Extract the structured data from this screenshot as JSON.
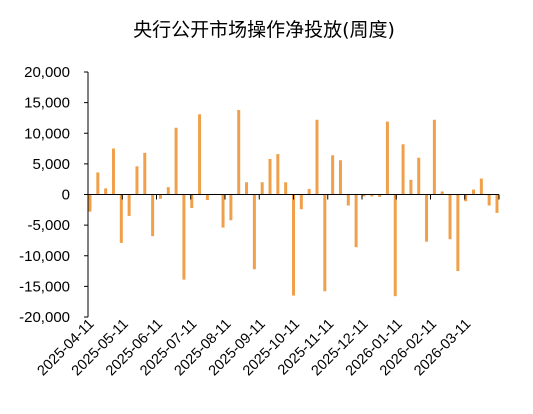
{
  "chart_data": {
    "type": "bar",
    "title": "央行公开市场操作净投放(周度)",
    "xlabel": "",
    "ylabel": "",
    "ylim": [
      -20000,
      20000
    ],
    "yticks": [
      20000,
      15000,
      10000,
      5000,
      0,
      -5000,
      -10000,
      -15000,
      -20000
    ],
    "ytick_labels": [
      "20,000",
      "15,000",
      "10,000",
      "5,000",
      "0",
      "-5,000",
      "-10,000",
      "-15,000",
      "-20,000"
    ],
    "xtick_labels": [
      "2025-04-11",
      "2025-05-11",
      "2025-06-11",
      "2025-07-11",
      "2025-08-11",
      "2025-09-11",
      "2025-10-11",
      "2025-11-11",
      "2025-12-11",
      "2026-01-11",
      "2026-02-11",
      "2026-03-11"
    ],
    "grid": false,
    "legend": "none",
    "bar_color": "#f0a04b",
    "values": [
      -2800,
      3600,
      1000,
      7500,
      -7900,
      -3500,
      4600,
      6800,
      -6800,
      -700,
      1200,
      10900,
      -13900,
      -2200,
      13100,
      -900,
      100,
      -5400,
      -4200,
      13800,
      2000,
      -12200,
      2000,
      5800,
      6600,
      2000,
      -16500,
      -2400,
      900,
      12200,
      -15800,
      6400,
      5600,
      -1800,
      -8600,
      -300,
      -300,
      -400,
      11900,
      -16600,
      8200,
      2400,
      6000,
      -7700,
      12200,
      500,
      -7300,
      -12500,
      -1100,
      800,
      2600,
      -1800,
      -3000
    ]
  }
}
